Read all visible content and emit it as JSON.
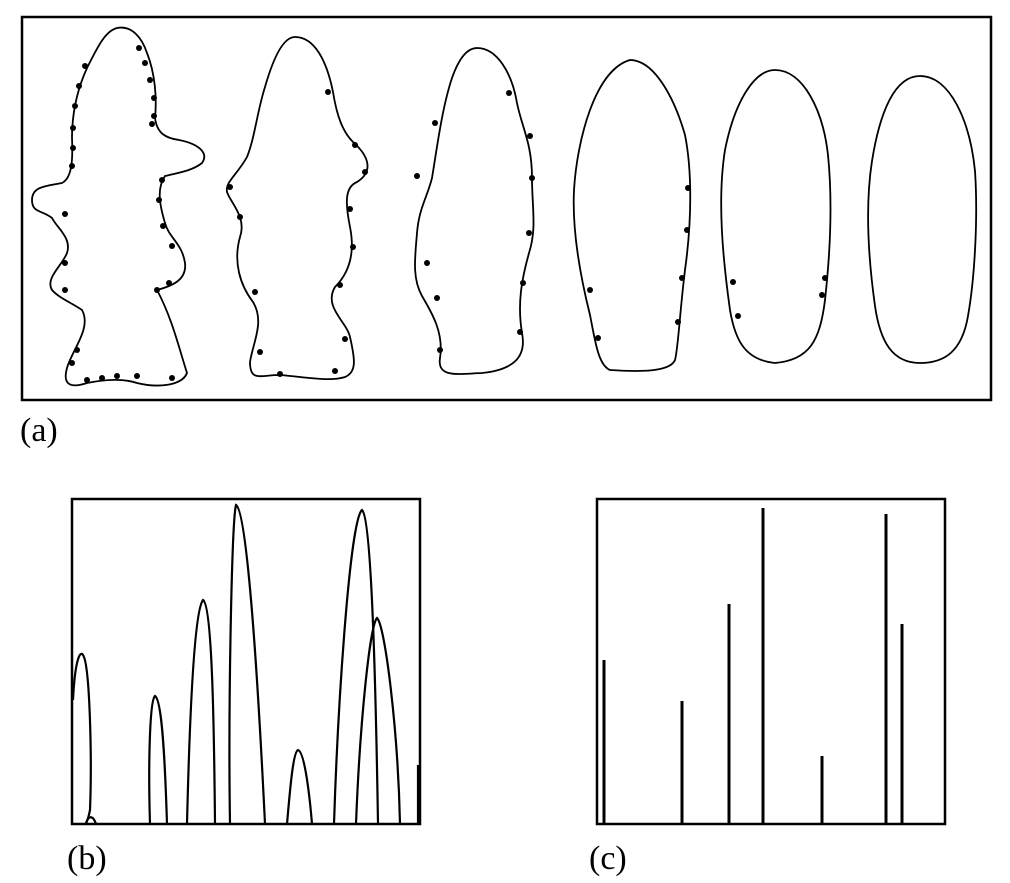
{
  "panels": [
    {
      "label": "(a)"
    },
    {
      "label": "(b)"
    },
    {
      "label": "(c)"
    }
  ],
  "colors": {
    "stroke": "#000000",
    "background": "#ffffff"
  }
}
